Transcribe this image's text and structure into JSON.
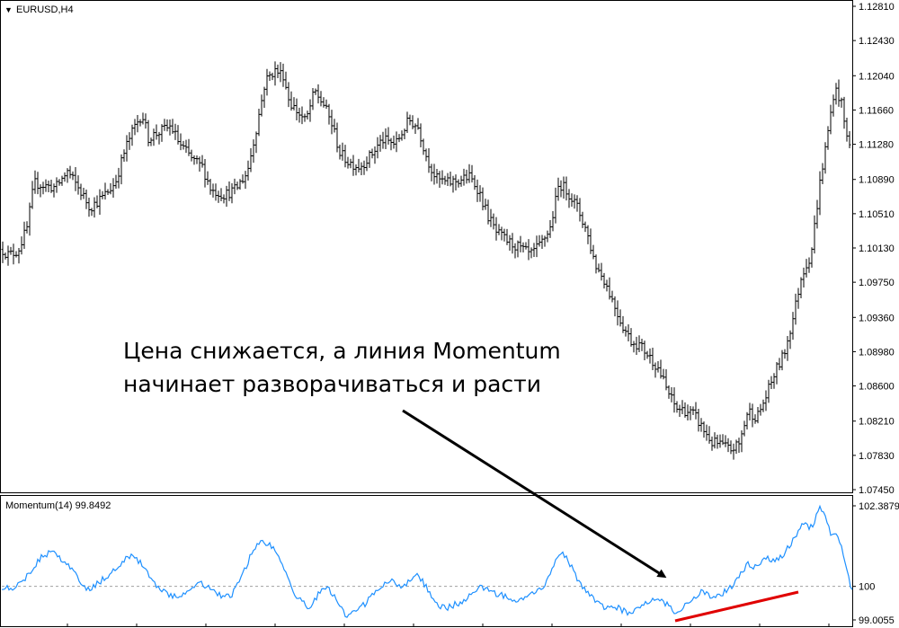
{
  "main_window": {
    "symbol_title": "EURUSD,H4",
    "arrow_glyph": "▼"
  },
  "indicator_window": {
    "title": "Momentum(14) 99.8492"
  },
  "annotation": {
    "line1": "Цена снижается, а линия Momentum",
    "line2": "начинает разворачиваться и расти"
  },
  "colors": {
    "price_bars": "#000000",
    "momentum_line": "#1e90ff",
    "level_line": "#a0a0a0",
    "highlight_line": "#e00000",
    "arrow": "#000000"
  },
  "chart_data": [
    {
      "type": "line",
      "subtype": "ohlc-bars",
      "title": "EURUSD,H4",
      "ylim": [
        1.0745,
        1.1281
      ],
      "y_ticks": [
        "1.12810",
        "1.12430",
        "1.12040",
        "1.11660",
        "1.11280",
        "1.10890",
        "1.10510",
        "1.10130",
        "1.09750",
        "1.09360",
        "1.08980",
        "1.08600",
        "1.08210",
        "1.07830",
        "1.07450"
      ],
      "price_path": [
        [
          0,
          1.1013
        ],
        [
          10,
          1.1005
        ],
        [
          20,
          1.101
        ],
        [
          30,
          1.1035
        ],
        [
          38,
          1.1085
        ],
        [
          50,
          1.1082
        ],
        [
          62,
          1.108
        ],
        [
          75,
          1.1098
        ],
        [
          90,
          1.1075
        ],
        [
          100,
          1.1058
        ],
        [
          115,
          1.107
        ],
        [
          128,
          1.1085
        ],
        [
          140,
          1.1125
        ],
        [
          150,
          1.1148
        ],
        [
          158,
          1.1162
        ],
        [
          165,
          1.1135
        ],
        [
          178,
          1.1142
        ],
        [
          190,
          1.1148
        ],
        [
          200,
          1.1128
        ],
        [
          215,
          1.111
        ],
        [
          225,
          1.1103
        ],
        [
          235,
          1.1077
        ],
        [
          250,
          1.1072
        ],
        [
          262,
          1.1078
        ],
        [
          275,
          1.1097
        ],
        [
          285,
          1.1145
        ],
        [
          295,
          1.1198
        ],
        [
          305,
          1.121
        ],
        [
          315,
          1.1205
        ],
        [
          322,
          1.1175
        ],
        [
          330,
          1.1165
        ],
        [
          340,
          1.1153
        ],
        [
          350,
          1.1187
        ],
        [
          360,
          1.1172
        ],
        [
          370,
          1.1148
        ],
        [
          378,
          1.1118
        ],
        [
          388,
          1.1108
        ],
        [
          400,
          1.1103
        ],
        [
          412,
          1.1115
        ],
        [
          425,
          1.1133
        ],
        [
          440,
          1.1128
        ],
        [
          455,
          1.1155
        ],
        [
          465,
          1.1147
        ],
        [
          475,
          1.1112
        ],
        [
          485,
          1.109
        ],
        [
          497,
          1.1085
        ],
        [
          510,
          1.1088
        ],
        [
          522,
          1.1092
        ],
        [
          532,
          1.1078
        ],
        [
          542,
          1.105
        ],
        [
          552,
          1.103
        ],
        [
          565,
          1.102
        ],
        [
          578,
          1.1013
        ],
        [
          590,
          1.1005
        ],
        [
          600,
          1.1015
        ],
        [
          612,
          1.1035
        ],
        [
          622,
          1.1085
        ],
        [
          632,
          1.1075
        ],
        [
          642,
          1.1058
        ],
        [
          652,
          1.1033
        ],
        [
          662,
          1.0995
        ],
        [
          672,
          1.0978
        ],
        [
          682,
          1.0953
        ],
        [
          692,
          1.0928
        ],
        [
          702,
          1.091
        ],
        [
          712,
          1.0905
        ],
        [
          722,
          1.0893
        ],
        [
          732,
          1.088
        ],
        [
          742,
          1.0855
        ],
        [
          752,
          1.0835
        ],
        [
          762,
          1.0833
        ],
        [
          772,
          1.0828
        ],
        [
          782,
          1.0812
        ],
        [
          792,
          1.0797
        ],
        [
          802,
          1.0795
        ],
        [
          812,
          1.0789
        ],
        [
          822,
          1.0795
        ],
        [
          832,
          1.0833
        ],
        [
          842,
          1.0825
        ],
        [
          852,
          1.0848
        ],
        [
          862,
          1.0875
        ],
        [
          872,
          1.0895
        ],
        [
          882,
          1.0935
        ],
        [
          892,
          1.0985
        ],
        [
          902,
          1.1005
        ],
        [
          912,
          1.1085
        ],
        [
          920,
          1.1135
        ],
        [
          928,
          1.119
        ],
        [
          935,
          1.1178
        ],
        [
          942,
          1.1135
        ],
        [
          948,
          1.1128
        ]
      ]
    },
    {
      "type": "line",
      "title": "Momentum(14) 99.8492",
      "ylim": [
        99.0055,
        102.3879
      ],
      "y_ticks": [
        "102.3879",
        "100",
        "99.0055"
      ],
      "reference_level": 100,
      "series": [
        {
          "values": [
            [
              0,
              100.0
            ],
            [
              15,
              99.95
            ],
            [
              30,
              100.3
            ],
            [
              45,
              100.85
            ],
            [
              60,
              101.05
            ],
            [
              72,
              100.7
            ],
            [
              82,
              100.45
            ],
            [
              90,
              100.05
            ],
            [
              100,
              99.9
            ],
            [
              112,
              100.15
            ],
            [
              125,
              100.45
            ],
            [
              135,
              100.7
            ],
            [
              145,
              100.9
            ],
            [
              155,
              100.75
            ],
            [
              165,
              100.35
            ],
            [
              175,
              100.0
            ],
            [
              188,
              99.75
            ],
            [
              198,
              99.65
            ],
            [
              210,
              99.95
            ],
            [
              222,
              100.1
            ],
            [
              235,
              99.95
            ],
            [
              248,
              99.65
            ],
            [
              258,
              99.75
            ],
            [
              270,
              100.35
            ],
            [
              280,
              101.0
            ],
            [
              290,
              101.35
            ],
            [
              300,
              101.25
            ],
            [
              310,
              100.9
            ],
            [
              318,
              100.35
            ],
            [
              325,
              99.9
            ],
            [
              335,
              99.55
            ],
            [
              345,
              99.35
            ],
            [
              355,
              99.8
            ],
            [
              365,
              99.95
            ],
            [
              375,
              99.55
            ],
            [
              385,
              99.1
            ],
            [
              395,
              99.25
            ],
            [
              405,
              99.45
            ],
            [
              415,
              99.75
            ],
            [
              425,
              100.05
            ],
            [
              435,
              100.15
            ],
            [
              445,
              99.95
            ],
            [
              455,
              100.15
            ],
            [
              465,
              100.35
            ],
            [
              475,
              99.95
            ],
            [
              485,
              99.45
            ],
            [
              495,
              99.35
            ],
            [
              505,
              99.45
            ],
            [
              515,
              99.55
            ],
            [
              525,
              99.75
            ],
            [
              535,
              100.0
            ],
            [
              545,
              99.85
            ],
            [
              555,
              99.75
            ],
            [
              565,
              99.7
            ],
            [
              575,
              99.55
            ],
            [
              585,
              99.75
            ],
            [
              595,
              99.85
            ],
            [
              605,
              99.95
            ],
            [
              615,
              100.55
            ],
            [
              625,
              101.05
            ],
            [
              633,
              100.7
            ],
            [
              642,
              100.25
            ],
            [
              652,
              99.85
            ],
            [
              662,
              99.55
            ],
            [
              672,
              99.35
            ],
            [
              682,
              99.45
            ],
            [
              692,
              99.3
            ],
            [
              702,
              99.2
            ],
            [
              712,
              99.45
            ],
            [
              722,
              99.55
            ],
            [
              732,
              99.6
            ],
            [
              742,
              99.45
            ],
            [
              752,
              99.2
            ],
            [
              762,
              99.45
            ],
            [
              772,
              99.7
            ],
            [
              782,
              99.85
            ],
            [
              792,
              99.65
            ],
            [
              802,
              99.75
            ],
            [
              812,
              99.95
            ],
            [
              822,
              100.3
            ],
            [
              832,
              100.65
            ],
            [
              842,
              100.55
            ],
            [
              852,
              100.85
            ],
            [
              862,
              100.75
            ],
            [
              872,
              100.95
            ],
            [
              882,
              101.35
            ],
            [
              888,
              101.65
            ],
            [
              895,
              101.95
            ],
            [
              900,
              101.75
            ],
            [
              905,
              101.85
            ],
            [
              912,
              102.38
            ],
            [
              918,
              102.05
            ],
            [
              924,
              101.6
            ],
            [
              930,
              101.5
            ],
            [
              936,
              101.15
            ],
            [
              942,
              100.5
            ],
            [
              948,
              99.8492
            ]
          ]
        }
      ]
    }
  ]
}
